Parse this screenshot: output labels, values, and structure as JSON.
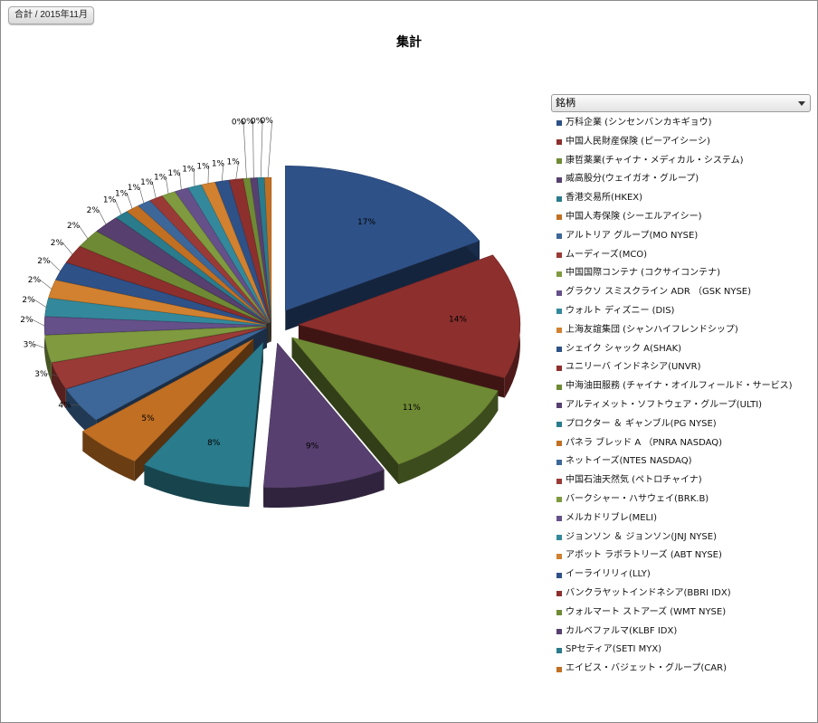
{
  "filter_label": "合計 / 2015年11月",
  "legend_header": "銘柄",
  "colors": [
    "#2e5188",
    "#8c2f2d",
    "#6f8a34",
    "#57406f",
    "#2a7b8c",
    "#c16f23",
    "#3d6799",
    "#9a3a37",
    "#7f9a3f",
    "#65508a",
    "#33899b",
    "#d1812f"
  ],
  "chart_data": {
    "type": "pie",
    "title": "集計",
    "legend_placement": "right",
    "categories": [
      "万科企業 (シンセンバンカキギョウ)",
      "中国人民財産保険 (ピーアイシーシ)",
      "康哲薬業(チャイナ・メディカル・システム)",
      "威高股分(ウェイガオ・グループ)",
      "香港交易所(HKEX)",
      "中国人寿保険 (シーエルアイシー)",
      "アルトリア グループ(MO NYSE)",
      "ムーディーズ(MCO)",
      "中国国際コンテナ (コクサイコンテナ)",
      "グラクソ スミスクライン ADR （GSK NYSE)",
      "ウォルト ディズニー (DIS)",
      "上海友誼集団 (シャンハイフレンドシップ)",
      "シェイク シャック A(SHAK)",
      "ユニリーバ インドネシア(UNVR)",
      "中海油田服務 (チャイナ・オイルフィールド・サービス)",
      "アルティメット・ソフトウェア・グループ(ULTI)",
      "プロクター ＆ ギャンブル(PG NYSE)",
      "パネラ ブレッド A （PNRA NASDAQ)",
      "ネットイーズ(NTES NASDAQ)",
      "中国石油天然気 (ペトロチャイナ)",
      "バークシャー・ハサウェイ(BRK.B)",
      "メルカドリブレ(MELI)",
      "ジョンソン ＆ ジョンソン(JNJ NYSE)",
      "アボット ラボラトリーズ (ABT NYSE)",
      "イーライリリィ(LLY)",
      "バンクラヤットインドネシア(BBRI IDX)",
      "ウォルマート ストアーズ (WMT NYSE)",
      "カルベファルマ(KLBF IDX)",
      "SPセティア(SETI MYX)",
      "エイビス・バジェット・グループ(CAR)"
    ],
    "values": [
      17,
      14,
      11,
      9,
      8,
      5,
      4,
      3,
      3,
      2,
      2,
      2,
      2,
      2,
      2,
      2,
      1,
      1,
      1,
      1,
      1,
      1,
      1,
      1,
      1,
      1,
      0,
      0,
      0,
      0
    ],
    "labels": [
      "17%",
      "14%",
      "11%",
      "9%",
      "8%",
      "5%",
      "4%",
      "3%",
      "3%",
      "2%",
      "2%",
      "2%",
      "2%",
      "2%",
      "2%",
      "2%",
      "1%",
      "1%",
      "1%",
      "1%",
      "1%",
      "1%",
      "1%",
      "1%",
      "1%",
      "1%",
      "0%",
      "0%",
      "0%",
      "0%"
    ],
    "slice_angles_deg": [
      [
        0,
        61.2
      ],
      [
        61.2,
        111.6
      ],
      [
        111.6,
        151.2
      ],
      [
        151.2,
        183.6
      ],
      [
        183.6,
        212.4
      ],
      [
        212.4,
        230.4
      ],
      [
        230.4,
        244.8
      ],
      [
        244.8,
        255.6
      ],
      [
        255.6,
        266.4
      ],
      [
        266.4,
        273.6
      ],
      [
        273.6,
        280.8
      ],
      [
        280.8,
        288
      ],
      [
        288,
        295.2
      ],
      [
        295.2,
        302.4
      ],
      [
        302.4,
        309.6
      ],
      [
        309.6,
        316.8
      ],
      [
        316.8,
        320.4
      ],
      [
        320.4,
        324
      ],
      [
        324,
        327.6
      ],
      [
        327.6,
        331.2
      ],
      [
        331.2,
        334.8
      ],
      [
        334.8,
        338.4
      ],
      [
        338.4,
        342
      ],
      [
        342,
        345.6
      ],
      [
        345.6,
        349.2
      ],
      [
        349.2,
        352.8
      ],
      [
        352.8,
        354.6
      ],
      [
        354.6,
        356.4
      ],
      [
        356.4,
        358.2
      ],
      [
        358.2,
        360
      ]
    ]
  }
}
